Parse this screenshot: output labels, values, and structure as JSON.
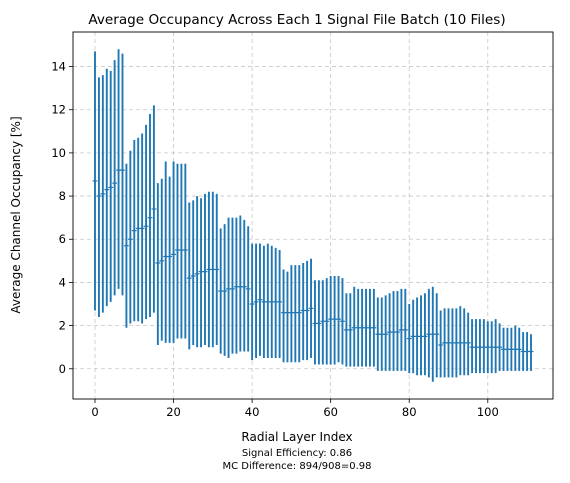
{
  "chart_data": {
    "type": "errorbar",
    "title": "Average Occupancy Across Each 1 Signal File Batch (10 Files)",
    "xlabel": "Radial Layer Index",
    "ylabel": "Average Channel Occupancy [%]",
    "xlim": [
      -5.6,
      116.6
    ],
    "ylim": [
      -1.4,
      15.6
    ],
    "xticks": [
      0,
      20,
      40,
      60,
      80,
      100
    ],
    "yticks": [
      0,
      2,
      4,
      6,
      8,
      10,
      12,
      14
    ],
    "grid": true,
    "series_color": "#1f77b4",
    "points": [
      [
        0,
        8.7,
        2.7,
        14.7
      ],
      [
        1,
        8.0,
        2.4,
        13.5
      ],
      [
        2,
        8.1,
        2.6,
        13.6
      ],
      [
        3,
        8.3,
        2.9,
        13.9
      ],
      [
        4,
        8.4,
        3.1,
        13.8
      ],
      [
        5,
        8.6,
        3.4,
        14.3
      ],
      [
        6,
        9.2,
        3.7,
        14.8
      ],
      [
        7,
        9.2,
        3.4,
        14.6
      ],
      [
        8,
        5.7,
        1.9,
        9.5
      ],
      [
        9,
        6.0,
        2.1,
        10.1
      ],
      [
        10,
        6.4,
        2.2,
        10.6
      ],
      [
        11,
        6.5,
        2.2,
        10.7
      ],
      [
        12,
        6.5,
        2.1,
        10.9
      ],
      [
        13,
        6.6,
        2.3,
        11.3
      ],
      [
        14,
        7.0,
        2.4,
        11.8
      ],
      [
        15,
        7.4,
        2.6,
        12.2
      ],
      [
        16,
        4.9,
        1.1,
        8.6
      ],
      [
        17,
        5.0,
        1.3,
        8.8
      ],
      [
        18,
        5.2,
        1.2,
        9.6
      ],
      [
        19,
        5.2,
        1.2,
        8.9
      ],
      [
        20,
        5.3,
        1.2,
        9.6
      ],
      [
        21,
        5.5,
        1.4,
        9.5
      ],
      [
        22,
        5.5,
        1.4,
        9.5
      ],
      [
        23,
        5.5,
        1.4,
        9.5
      ],
      [
        24,
        4.2,
        0.9,
        7.7
      ],
      [
        25,
        4.3,
        1.1,
        7.8
      ],
      [
        26,
        4.4,
        1.0,
        8.0
      ],
      [
        27,
        4.5,
        1.0,
        7.9
      ],
      [
        28,
        4.5,
        1.1,
        8.1
      ],
      [
        29,
        4.6,
        1.0,
        8.2
      ],
      [
        30,
        4.6,
        1.0,
        8.2
      ],
      [
        31,
        4.6,
        1.1,
        8.1
      ],
      [
        32,
        3.6,
        0.7,
        6.5
      ],
      [
        33,
        3.6,
        0.6,
        6.7
      ],
      [
        34,
        3.7,
        0.5,
        7.0
      ],
      [
        35,
        3.7,
        0.7,
        7.0
      ],
      [
        36,
        3.8,
        0.7,
        7.0
      ],
      [
        37,
        3.8,
        0.8,
        7.1
      ],
      [
        38,
        3.8,
        0.8,
        6.9
      ],
      [
        39,
        3.7,
        0.8,
        6.6
      ],
      [
        40,
        3.0,
        0.4,
        5.8
      ],
      [
        41,
        3.1,
        0.5,
        5.8
      ],
      [
        42,
        3.2,
        0.6,
        5.8
      ],
      [
        43,
        3.1,
        0.5,
        5.7
      ],
      [
        44,
        3.1,
        0.5,
        5.8
      ],
      [
        45,
        3.1,
        0.5,
        5.7
      ],
      [
        46,
        3.1,
        0.5,
        5.6
      ],
      [
        47,
        3.1,
        0.5,
        5.5
      ],
      [
        48,
        2.6,
        0.3,
        4.6
      ],
      [
        49,
        2.6,
        0.3,
        4.5
      ],
      [
        50,
        2.6,
        0.3,
        4.8
      ],
      [
        51,
        2.6,
        0.3,
        4.8
      ],
      [
        52,
        2.6,
        0.3,
        4.8
      ],
      [
        53,
        2.7,
        0.4,
        4.9
      ],
      [
        54,
        2.7,
        0.4,
        5.0
      ],
      [
        55,
        2.8,
        0.5,
        5.1
      ],
      [
        56,
        2.1,
        0.2,
        4.1
      ],
      [
        57,
        2.1,
        0.2,
        4.1
      ],
      [
        58,
        2.2,
        0.2,
        4.1
      ],
      [
        59,
        2.2,
        0.2,
        4.2
      ],
      [
        60,
        2.3,
        0.2,
        4.3
      ],
      [
        61,
        2.3,
        0.2,
        4.3
      ],
      [
        62,
        2.3,
        0.3,
        4.3
      ],
      [
        63,
        2.2,
        0.2,
        4.2
      ],
      [
        64,
        1.8,
        0.1,
        3.5
      ],
      [
        65,
        1.8,
        0.1,
        3.5
      ],
      [
        66,
        1.9,
        0.1,
        3.8
      ],
      [
        67,
        1.9,
        0.1,
        3.7
      ],
      [
        68,
        1.9,
        0.1,
        3.7
      ],
      [
        69,
        1.9,
        0.1,
        3.7
      ],
      [
        70,
        1.9,
        0.1,
        3.7
      ],
      [
        71,
        1.9,
        0.1,
        3.7
      ],
      [
        72,
        1.6,
        -0.1,
        3.3
      ],
      [
        73,
        1.6,
        -0.1,
        3.3
      ],
      [
        74,
        1.6,
        -0.1,
        3.4
      ],
      [
        75,
        1.7,
        -0.1,
        3.5
      ],
      [
        76,
        1.7,
        -0.1,
        3.6
      ],
      [
        77,
        1.7,
        -0.1,
        3.6
      ],
      [
        78,
        1.8,
        -0.1,
        3.7
      ],
      [
        79,
        1.8,
        -0.1,
        3.7
      ],
      [
        80,
        1.4,
        -0.2,
        3.0
      ],
      [
        81,
        1.5,
        -0.2,
        3.2
      ],
      [
        82,
        1.5,
        -0.3,
        3.3
      ],
      [
        83,
        1.5,
        -0.3,
        3.4
      ],
      [
        84,
        1.5,
        -0.3,
        3.5
      ],
      [
        85,
        1.6,
        -0.4,
        3.7
      ],
      [
        86,
        1.6,
        -0.6,
        3.8
      ],
      [
        87,
        1.6,
        -0.4,
        3.5
      ],
      [
        88,
        1.1,
        -0.4,
        2.7
      ],
      [
        89,
        1.2,
        -0.4,
        2.8
      ],
      [
        90,
        1.2,
        -0.4,
        2.8
      ],
      [
        91,
        1.2,
        -0.4,
        2.8
      ],
      [
        92,
        1.2,
        -0.4,
        2.8
      ],
      [
        93,
        1.2,
        -0.3,
        2.9
      ],
      [
        94,
        1.2,
        -0.3,
        2.8
      ],
      [
        95,
        1.2,
        -0.3,
        2.6
      ],
      [
        96,
        1.0,
        -0.2,
        2.3
      ],
      [
        97,
        1.0,
        -0.2,
        2.3
      ],
      [
        98,
        1.0,
        -0.2,
        2.3
      ],
      [
        99,
        1.0,
        -0.2,
        2.3
      ],
      [
        100,
        1.0,
        -0.2,
        2.2
      ],
      [
        101,
        1.0,
        -0.2,
        2.2
      ],
      [
        102,
        1.0,
        -0.2,
        2.3
      ],
      [
        103,
        1.0,
        -0.1,
        2.1
      ],
      [
        104,
        0.9,
        -0.1,
        1.9
      ],
      [
        105,
        0.9,
        -0.1,
        1.9
      ],
      [
        106,
        0.9,
        -0.1,
        1.9
      ],
      [
        107,
        0.9,
        -0.1,
        2.0
      ],
      [
        108,
        0.9,
        -0.1,
        1.9
      ],
      [
        109,
        0.8,
        -0.1,
        1.7
      ],
      [
        110,
        0.8,
        -0.1,
        1.7
      ],
      [
        111,
        0.8,
        -0.1,
        1.6
      ]
    ],
    "notes": [
      "Signal Efficiency: 0.86",
      "MC Difference: 894/908=0.98"
    ]
  }
}
